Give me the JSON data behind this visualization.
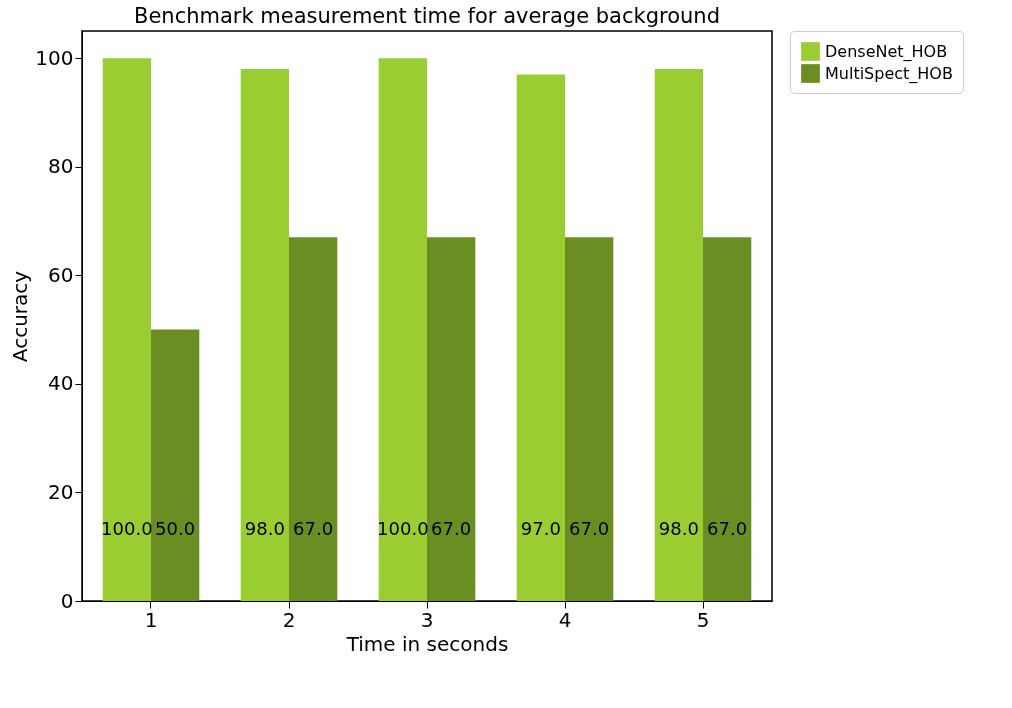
{
  "chart_data": {
    "type": "bar",
    "title": "Benchmark measurement time for average background",
    "xlabel": "Time in seconds",
    "ylabel": "Accuracy",
    "categories": [
      "1",
      "2",
      "3",
      "4",
      "5"
    ],
    "series": [
      {
        "name": "DenseNet_HOB",
        "color": "#9acd32",
        "values": [
          100,
          98,
          100,
          97,
          98
        ],
        "value_labels": [
          "100.0",
          "98.0",
          "100.0",
          "97.0",
          "98.0"
        ]
      },
      {
        "name": "MultiSpect_HOB",
        "color": "#6b8e23",
        "values": [
          50,
          67,
          67,
          67,
          67
        ],
        "value_labels": [
          "50.0",
          "67.0",
          "67.0",
          "67.0",
          "67.0"
        ]
      }
    ],
    "ylim": [
      0,
      105
    ],
    "yticks": [
      0,
      20,
      40,
      60,
      80,
      100
    ],
    "grid": false,
    "legend": "top right"
  }
}
